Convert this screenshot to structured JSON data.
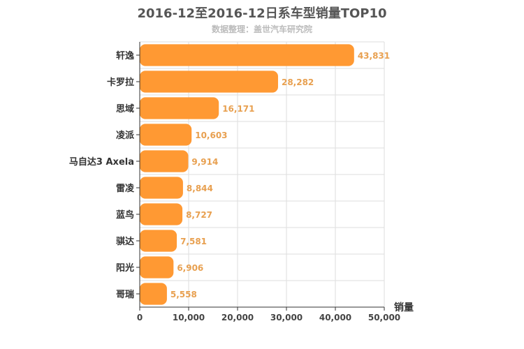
{
  "chart_data": {
    "type": "bar",
    "orientation": "horizontal",
    "title": "2016-12至2016-12日系车型销量TOP10",
    "subtitle": "数据整理：盖世汽车研究院",
    "categories": [
      "轩逸",
      "卡罗拉",
      "思域",
      "凌派",
      "马自达3 Axela",
      "雷凌",
      "蓝鸟",
      "骐达",
      "阳光",
      "哥瑞"
    ],
    "values": [
      43831,
      28282,
      16171,
      10603,
      9914,
      8844,
      8727,
      7581,
      6906,
      5558
    ],
    "value_labels": [
      "43,831",
      "28,282",
      "16,171",
      "10,603",
      "9,914",
      "8,844",
      "8,727",
      "7,581",
      "6,906",
      "5,558"
    ],
    "xlabel": "销量",
    "ylabel": "",
    "xlim": [
      0,
      50000
    ],
    "ticks": [
      0,
      10000,
      20000,
      30000,
      40000,
      50000
    ],
    "tick_labels": [
      "0",
      "10,000",
      "20,000",
      "30,000",
      "40,000",
      "50,000"
    ],
    "grid": true,
    "legend": "none",
    "colors": {
      "bar": "#ff9933",
      "data_label": "#e8a050",
      "grid": "#dddddd",
      "axis": "#333333"
    }
  }
}
